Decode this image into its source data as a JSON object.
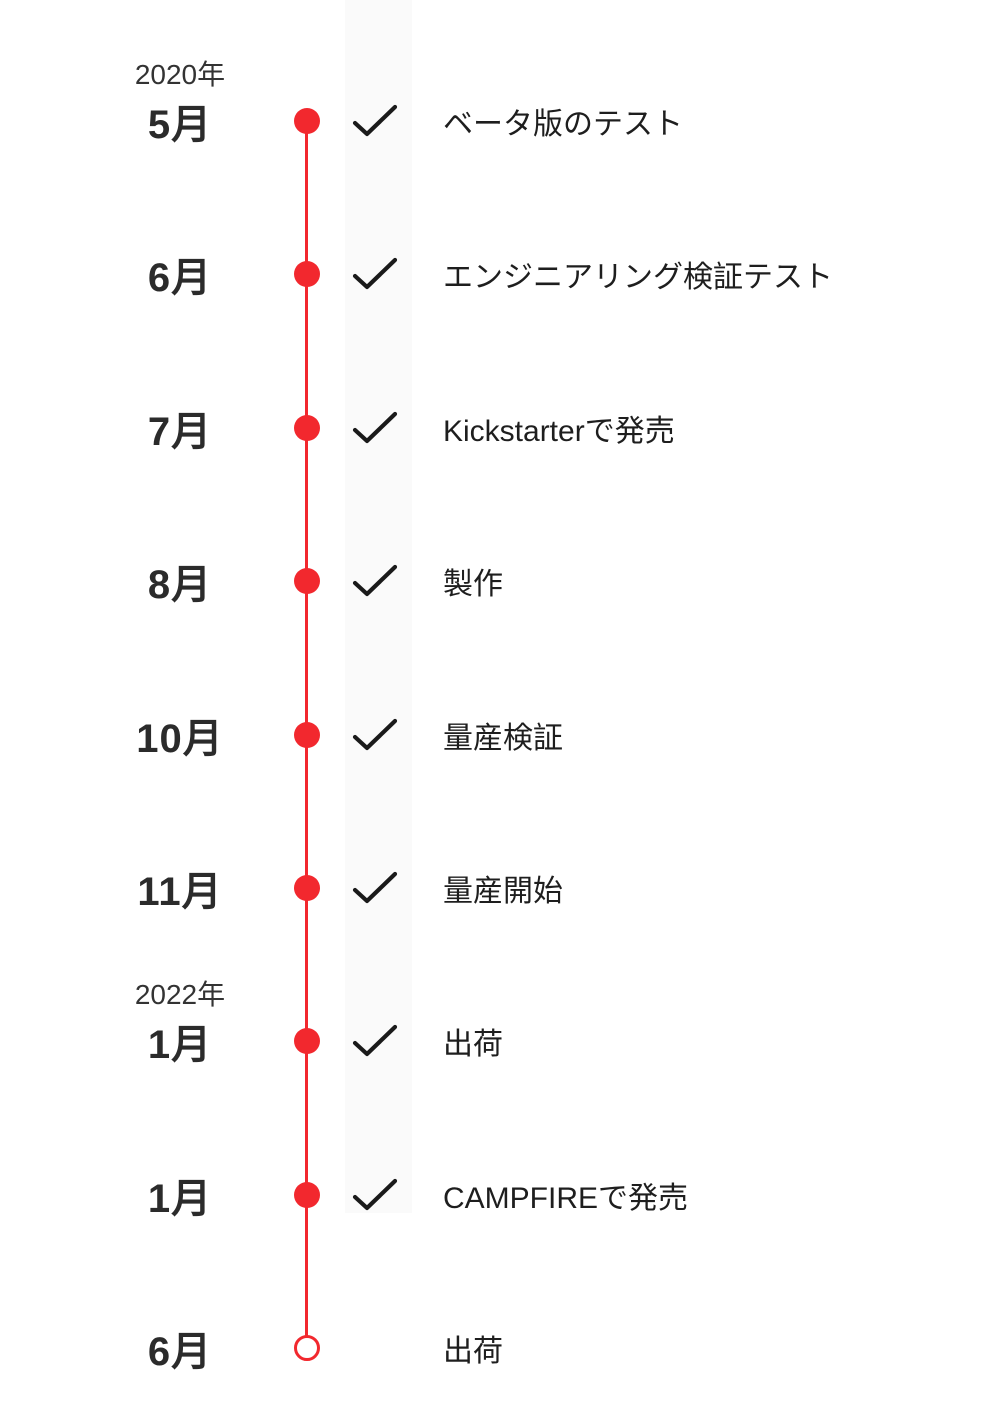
{
  "timeline": {
    "accent_color": "#f2282e",
    "check_color": "#1a1a1a",
    "items": [
      {
        "year": "2020年",
        "month": "5月",
        "label": "ベータ版のテスト",
        "checked": true,
        "dot": "filled"
      },
      {
        "month": "6月",
        "label": "エンジニアリング検証テスト",
        "checked": true,
        "dot": "filled"
      },
      {
        "month": "7月",
        "label": "Kickstarterで発売",
        "checked": true,
        "dot": "filled"
      },
      {
        "month": "8月",
        "label": "製作",
        "checked": true,
        "dot": "filled"
      },
      {
        "month": "10月",
        "label": "量産検証",
        "checked": true,
        "dot": "filled"
      },
      {
        "month": "11月",
        "label": "量産開始",
        "checked": true,
        "dot": "filled"
      },
      {
        "year": "2022年",
        "month": "1月",
        "label": "出荷",
        "checked": true,
        "dot": "filled"
      },
      {
        "month": "1月",
        "label": "CAMPFIREで発売",
        "checked": true,
        "dot": "filled"
      },
      {
        "month": "6月",
        "label": "出荷",
        "checked": false,
        "dot": "open"
      }
    ]
  }
}
